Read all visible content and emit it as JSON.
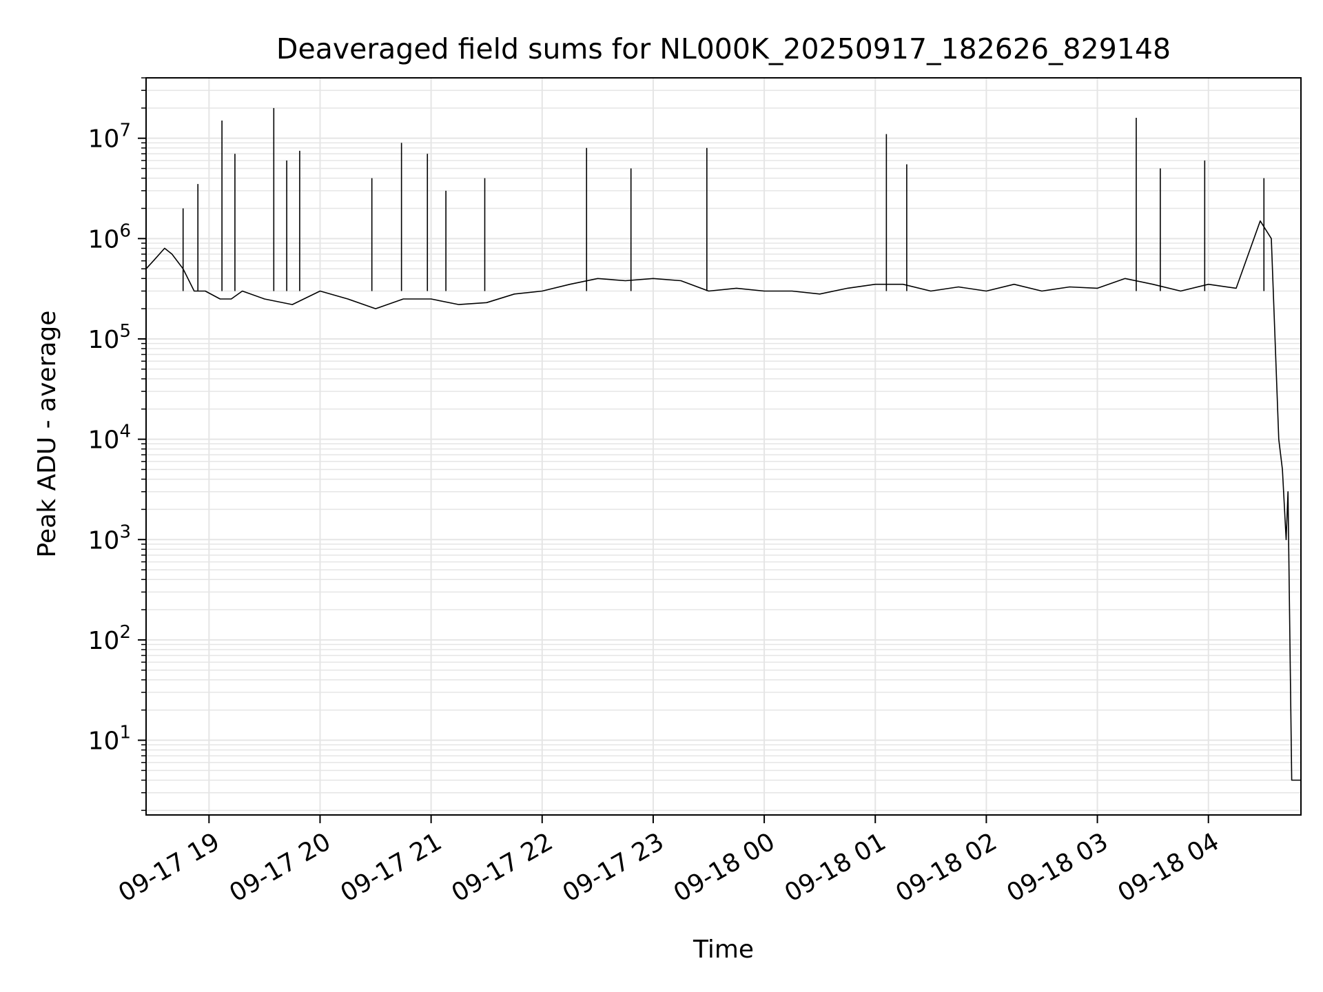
{
  "chart_data": {
    "type": "line",
    "title": "Deaveraged field sums for NL000K_20250917_182626_829148",
    "xlabel": "Time",
    "ylabel": "Peak ADU - average",
    "yscale": "log",
    "ylim": [
      1.8,
      40000000
    ],
    "xlim": [
      "2025-09-17 18:26",
      "2025-09-18 04:50"
    ],
    "grid": true,
    "grid_color": "#e5e5e5",
    "line_color": "#000000",
    "x_ticks": [
      {
        "value": "2025-09-17 19:00",
        "label": "09-17 19"
      },
      {
        "value": "2025-09-17 20:00",
        "label": "09-17 20"
      },
      {
        "value": "2025-09-17 21:00",
        "label": "09-17 21"
      },
      {
        "value": "2025-09-17 22:00",
        "label": "09-17 22"
      },
      {
        "value": "2025-09-17 23:00",
        "label": "09-17 23"
      },
      {
        "value": "2025-09-18 00:00",
        "label": "09-18 00"
      },
      {
        "value": "2025-09-18 01:00",
        "label": "09-18 01"
      },
      {
        "value": "2025-09-18 02:00",
        "label": "09-18 02"
      },
      {
        "value": "2025-09-18 03:00",
        "label": "09-18 03"
      },
      {
        "value": "2025-09-18 04:00",
        "label": "09-18 04"
      }
    ],
    "y_ticks": [
      {
        "value": 10,
        "base": "10",
        "exp": "1"
      },
      {
        "value": 100,
        "base": "10",
        "exp": "2"
      },
      {
        "value": 1000,
        "base": "10",
        "exp": "3"
      },
      {
        "value": 10000,
        "base": "10",
        "exp": "4"
      },
      {
        "value": 100000,
        "base": "10",
        "exp": "5"
      },
      {
        "value": 1000000,
        "base": "10",
        "exp": "6"
      },
      {
        "value": 10000000,
        "base": "10",
        "exp": "7"
      }
    ],
    "series": [
      {
        "x": [
          "2025-09-17 18:26",
          "2025-09-17 18:30",
          "2025-09-17 18:36",
          "2025-09-17 18:40",
          "2025-09-17 18:46",
          "2025-09-17 18:52",
          "2025-09-17 18:58",
          "2025-09-17 19:06",
          "2025-09-17 19:12",
          "2025-09-17 19:18",
          "2025-09-17 19:30",
          "2025-09-17 19:45",
          "2025-09-17 20:00",
          "2025-09-17 20:15",
          "2025-09-17 20:30",
          "2025-09-17 20:45",
          "2025-09-17 21:00",
          "2025-09-17 21:15",
          "2025-09-17 21:30",
          "2025-09-17 21:45",
          "2025-09-17 22:00",
          "2025-09-17 22:15",
          "2025-09-17 22:30",
          "2025-09-17 22:45",
          "2025-09-17 23:00",
          "2025-09-17 23:15",
          "2025-09-17 23:30",
          "2025-09-17 23:45",
          "2025-09-18 00:00",
          "2025-09-18 00:15",
          "2025-09-18 00:30",
          "2025-09-18 00:45",
          "2025-09-18 01:00",
          "2025-09-18 01:15",
          "2025-09-18 01:30",
          "2025-09-18 01:45",
          "2025-09-18 02:00",
          "2025-09-18 02:15",
          "2025-09-18 02:30",
          "2025-09-18 02:45",
          "2025-09-18 03:00",
          "2025-09-18 03:15",
          "2025-09-18 03:30",
          "2025-09-18 03:45",
          "2025-09-18 04:00",
          "2025-09-18 04:15",
          "2025-09-18 04:28",
          "2025-09-18 04:34",
          "2025-09-18 04:38",
          "2025-09-18 04:40",
          "2025-09-18 04:42",
          "2025-09-18 04:43",
          "2025-09-18 04:45",
          "2025-09-18 04:47",
          "2025-09-18 04:50"
        ],
        "y": [
          500000,
          600000,
          800000,
          700000,
          500000,
          300000,
          300000,
          250000,
          250000,
          300000,
          250000,
          220000,
          300000,
          250000,
          200000,
          250000,
          250000,
          220000,
          230000,
          280000,
          300000,
          350000,
          400000,
          380000,
          400000,
          380000,
          300000,
          320000,
          300000,
          300000,
          280000,
          320000,
          350000,
          350000,
          300000,
          330000,
          300000,
          350000,
          300000,
          330000,
          320000,
          400000,
          350000,
          300000,
          350000,
          320000,
          1500000,
          1000000,
          10000,
          5000,
          1000,
          3000,
          4,
          4,
          4
        ]
      }
    ],
    "spikes": [
      {
        "x": "2025-09-17 18:46",
        "y": 2000000
      },
      {
        "x": "2025-09-17 18:54",
        "y": 3500000
      },
      {
        "x": "2025-09-17 19:07",
        "y": 15000000
      },
      {
        "x": "2025-09-17 19:14",
        "y": 7000000
      },
      {
        "x": "2025-09-17 19:35",
        "y": 20000000
      },
      {
        "x": "2025-09-17 19:42",
        "y": 6000000
      },
      {
        "x": "2025-09-17 19:49",
        "y": 7500000
      },
      {
        "x": "2025-09-17 20:28",
        "y": 4000000
      },
      {
        "x": "2025-09-17 20:44",
        "y": 9000000
      },
      {
        "x": "2025-09-17 20:58",
        "y": 7000000
      },
      {
        "x": "2025-09-17 21:08",
        "y": 3000000
      },
      {
        "x": "2025-09-17 21:29",
        "y": 4000000
      },
      {
        "x": "2025-09-17 22:24",
        "y": 8000000
      },
      {
        "x": "2025-09-17 22:48",
        "y": 5000000
      },
      {
        "x": "2025-09-17 23:29",
        "y": 8000000
      },
      {
        "x": "2025-09-18 01:06",
        "y": 11000000
      },
      {
        "x": "2025-09-18 01:17",
        "y": 5500000
      },
      {
        "x": "2025-09-18 03:21",
        "y": 16000000
      },
      {
        "x": "2025-09-18 03:34",
        "y": 5000000
      },
      {
        "x": "2025-09-18 03:58",
        "y": 6000000
      },
      {
        "x": "2025-09-18 04:30",
        "y": 4000000
      }
    ]
  }
}
